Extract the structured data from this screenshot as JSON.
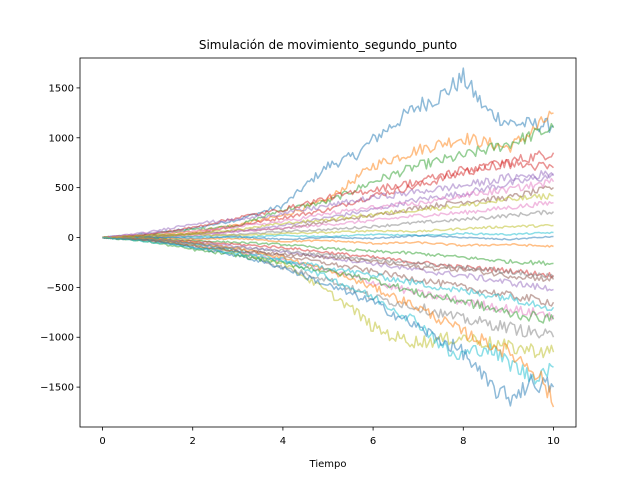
{
  "chart_data": {
    "type": "line",
    "title": "Simulación de movimiento_segundo_punto",
    "xlabel": "Tiempo",
    "ylabel": "",
    "xlim": [
      -0.5,
      10.5
    ],
    "ylim": [
      -1900,
      1800
    ],
    "xticks": [
      0,
      2,
      4,
      6,
      8,
      10
    ],
    "xtick_labels": [
      "0",
      "2",
      "4",
      "6",
      "8",
      "10"
    ],
    "yticks": [
      -1500,
      -1000,
      -500,
      0,
      500,
      1000,
      1500
    ],
    "ytick_labels": [
      "−1500",
      "−1000",
      "−500",
      "0",
      "500",
      "1000",
      "1500"
    ],
    "grid": false,
    "legend": "none",
    "series_style": "random walks starting at 0 for t in [0, 10]; spread grows over time",
    "colors": [
      "#1f77b4",
      "#ff7f0e",
      "#2ca02c",
      "#d62728",
      "#9467bd",
      "#8c564b",
      "#e377c2",
      "#7f7f7f",
      "#bcbd22",
      "#17becf"
    ],
    "series": [
      {
        "x": [
          0,
          1,
          2,
          3,
          4,
          5,
          5.6,
          6,
          7,
          7.5,
          8,
          8.5,
          9,
          10
        ],
        "y": [
          0,
          40,
          90,
          180,
          320,
          720,
          820,
          980,
          1320,
          1420,
          1600,
          1280,
          1150,
          1120
        ]
      },
      {
        "x": [
          0,
          1,
          2,
          3,
          4,
          5,
          6,
          7,
          8,
          9,
          9.5,
          10
        ],
        "y": [
          0,
          20,
          60,
          130,
          220,
          380,
          720,
          880,
          1000,
          900,
          1050,
          1250
        ]
      },
      {
        "x": [
          0,
          1,
          2,
          3,
          4,
          5,
          6,
          7,
          8,
          9,
          10
        ],
        "y": [
          0,
          30,
          80,
          120,
          280,
          360,
          560,
          720,
          820,
          940,
          1100
        ]
      },
      {
        "x": [
          0,
          1,
          2,
          3,
          4,
          5,
          6,
          7,
          8,
          9,
          10
        ],
        "y": [
          0,
          -10,
          40,
          120,
          200,
          280,
          420,
          520,
          650,
          760,
          850
        ]
      },
      {
        "x": [
          0,
          1,
          2,
          3,
          4,
          5,
          6,
          7,
          8,
          9,
          10
        ],
        "y": [
          0,
          15,
          30,
          60,
          120,
          200,
          280,
          380,
          440,
          540,
          620
        ]
      },
      {
        "x": [
          0,
          1,
          2,
          3,
          4,
          5,
          6,
          7,
          8,
          9,
          10
        ],
        "y": [
          0,
          10,
          40,
          70,
          90,
          160,
          220,
          300,
          360,
          400,
          500
        ]
      },
      {
        "x": [
          0,
          1,
          2,
          3,
          4,
          5,
          6,
          7,
          8,
          9,
          10
        ],
        "y": [
          0,
          -5,
          20,
          60,
          90,
          130,
          170,
          220,
          250,
          300,
          350
        ]
      },
      {
        "x": [
          0,
          1,
          2,
          3,
          4,
          5,
          6,
          7,
          8,
          9,
          10
        ],
        "y": [
          0,
          20,
          10,
          30,
          60,
          80,
          110,
          150,
          180,
          220,
          260
        ]
      },
      {
        "x": [
          0,
          1,
          2,
          3,
          4,
          5,
          6,
          7,
          8,
          9,
          10
        ],
        "y": [
          0,
          10,
          30,
          20,
          40,
          50,
          70,
          60,
          90,
          110,
          120
        ]
      },
      {
        "x": [
          0,
          1,
          2,
          3,
          4,
          5,
          6,
          7,
          8,
          9,
          10
        ],
        "y": [
          0,
          -5,
          10,
          0,
          20,
          10,
          30,
          20,
          40,
          30,
          50
        ]
      },
      {
        "x": [
          0,
          1,
          2,
          3,
          4,
          5,
          6,
          7,
          8,
          9,
          10
        ],
        "y": [
          0,
          5,
          -10,
          10,
          -20,
          0,
          -10,
          20,
          0,
          -20,
          10
        ]
      },
      {
        "x": [
          0,
          1,
          2,
          3,
          4,
          5,
          6,
          7,
          8,
          9,
          10
        ],
        "y": [
          0,
          -10,
          -20,
          -10,
          -40,
          -30,
          -60,
          -50,
          -80,
          -70,
          -90
        ]
      },
      {
        "x": [
          0,
          1,
          2,
          3,
          4,
          5,
          6,
          7,
          8,
          9,
          10
        ],
        "y": [
          0,
          -10,
          -30,
          -50,
          -70,
          -110,
          -140,
          -160,
          -200,
          -240,
          -260
        ]
      },
      {
        "x": [
          0,
          1,
          2,
          3,
          4,
          5,
          6,
          7,
          8,
          9,
          10
        ],
        "y": [
          0,
          -20,
          -40,
          -70,
          -100,
          -150,
          -200,
          -250,
          -300,
          -330,
          -380
        ]
      },
      {
        "x": [
          0,
          1,
          2,
          3,
          4,
          5,
          6,
          7,
          8,
          9,
          10
        ],
        "y": [
          0,
          -10,
          -50,
          -90,
          -140,
          -200,
          -260,
          -330,
          -380,
          -450,
          -520
        ]
      },
      {
        "x": [
          0,
          1,
          2,
          3,
          4,
          5,
          6,
          7,
          8,
          9,
          10
        ],
        "y": [
          0,
          -20,
          -60,
          -120,
          -180,
          -260,
          -340,
          -420,
          -500,
          -580,
          -650
        ]
      },
      {
        "x": [
          0,
          1,
          2,
          3,
          4,
          5,
          6,
          7,
          8,
          9,
          10
        ],
        "y": [
          0,
          -15,
          -70,
          -140,
          -230,
          -330,
          -450,
          -560,
          -640,
          -720,
          -780
        ]
      },
      {
        "x": [
          0,
          1,
          2,
          3,
          4,
          5,
          6,
          7,
          8,
          9,
          10
        ],
        "y": [
          0,
          -30,
          -90,
          -150,
          -300,
          -420,
          -600,
          -700,
          -820,
          -900,
          -1000
        ]
      },
      {
        "x": [
          0,
          1,
          2,
          3,
          4,
          5,
          5.5,
          6,
          6.5,
          7,
          8,
          9,
          10
        ],
        "y": [
          0,
          -20,
          -80,
          -150,
          -250,
          -550,
          -700,
          -900,
          -1000,
          -1050,
          -1000,
          -1100,
          -1150
        ]
      },
      {
        "x": [
          0,
          1,
          2,
          3,
          4,
          5,
          6,
          7,
          7.8,
          8.5,
          9,
          9.5,
          10
        ],
        "y": [
          0,
          -10,
          -60,
          -130,
          -220,
          -400,
          -600,
          -850,
          -1200,
          -1100,
          -1250,
          -1400,
          -1300
        ]
      },
      {
        "x": [
          0,
          1,
          2,
          3,
          4,
          5,
          6,
          7,
          8,
          8.5,
          9,
          9.5,
          10
        ],
        "y": [
          0,
          -20,
          -100,
          -180,
          -300,
          -480,
          -650,
          -900,
          -1150,
          -1450,
          -1620,
          -1450,
          -1500
        ]
      },
      {
        "x": [
          0,
          1,
          2,
          3,
          4,
          5,
          6,
          7,
          8,
          9,
          9.5,
          9.8,
          10
        ],
        "y": [
          0,
          -10,
          -50,
          -110,
          -200,
          -330,
          -500,
          -700,
          -950,
          -1150,
          -1300,
          -1450,
          -1700
        ]
      },
      {
        "x": [
          0,
          1,
          2,
          3,
          4,
          5,
          6,
          7,
          8,
          9,
          10
        ],
        "y": [
          0,
          -40,
          -120,
          -180,
          -260,
          -340,
          -420,
          -560,
          -640,
          -760,
          -820
        ]
      },
      {
        "x": [
          0,
          1,
          2,
          3,
          4,
          5,
          6,
          7,
          8,
          9,
          10
        ],
        "y": [
          0,
          30,
          100,
          200,
          280,
          400,
          480,
          560,
          680,
          740,
          700
        ]
      },
      {
        "x": [
          0,
          1,
          2,
          3,
          4,
          5,
          6,
          7,
          8,
          9,
          10
        ],
        "y": [
          0,
          50,
          140,
          180,
          240,
          320,
          400,
          460,
          520,
          600,
          640
        ]
      },
      {
        "x": [
          0,
          1,
          2,
          3,
          4,
          5,
          6,
          7,
          8,
          9,
          10
        ],
        "y": [
          0,
          -30,
          -80,
          -140,
          -160,
          -200,
          -240,
          -300,
          -320,
          -380,
          -420
        ]
      },
      {
        "x": [
          0,
          1,
          2,
          3,
          4,
          5,
          6,
          7,
          8,
          9,
          10
        ],
        "y": [
          0,
          40,
          60,
          110,
          160,
          240,
          300,
          340,
          420,
          480,
          560
        ]
      },
      {
        "x": [
          0,
          1,
          2,
          3,
          4,
          5,
          6,
          7,
          8,
          9,
          10
        ],
        "y": [
          0,
          -20,
          -60,
          -100,
          -130,
          -180,
          -220,
          -260,
          -300,
          -340,
          -400
        ]
      },
      {
        "x": [
          0,
          1,
          2,
          3,
          4,
          5,
          6,
          7,
          8,
          9,
          10
        ],
        "y": [
          0,
          20,
          40,
          80,
          140,
          180,
          230,
          280,
          320,
          380,
          420
        ]
      },
      {
        "x": [
          0,
          1,
          2,
          3,
          4,
          5,
          6,
          7,
          8,
          9,
          10
        ],
        "y": [
          0,
          -40,
          -100,
          -160,
          -240,
          -300,
          -380,
          -460,
          -540,
          -600,
          -700
        ]
      }
    ]
  }
}
